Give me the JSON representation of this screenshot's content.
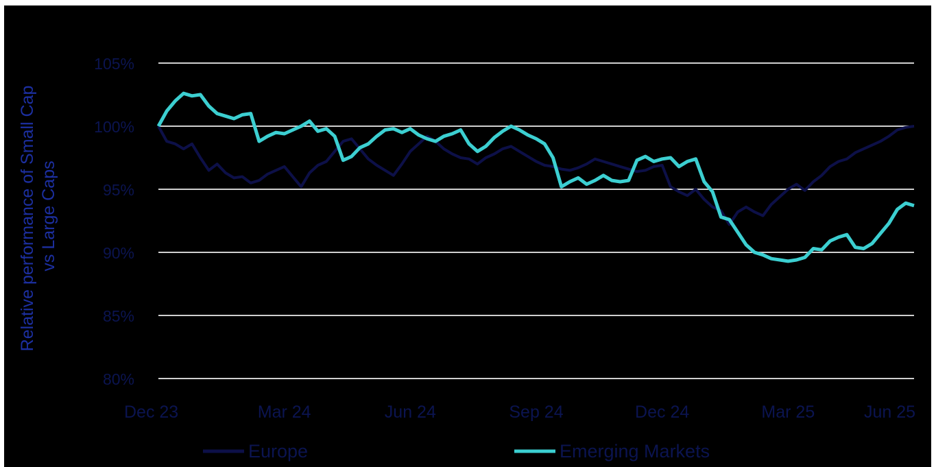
{
  "chart_data": {
    "type": "line",
    "ylabel_lines": [
      "Relative performance of Small Cap",
      "vs Large Caps"
    ],
    "xlabel": "",
    "y_ticks": [
      "80%",
      "85%",
      "90%",
      "95%",
      "100%",
      "105%"
    ],
    "y_tick_values": [
      80,
      85,
      90,
      95,
      100,
      105
    ],
    "ylim": [
      80,
      105
    ],
    "x_ticks": [
      "Dec 23",
      "Mar 24",
      "Jun 24",
      "Sep 24",
      "Dec 24",
      "Mar 25",
      "Jun 25"
    ],
    "x_tick_values": [
      0,
      3,
      6,
      9,
      12,
      15,
      18
    ],
    "xlim": [
      0,
      18
    ],
    "grid": "horizontal",
    "legend_position": "bottom",
    "series": [
      {
        "name": "Europe",
        "color": "#0d1048",
        "x": [
          0,
          0.2,
          0.4,
          0.6,
          0.8,
          1.0,
          1.2,
          1.4,
          1.6,
          1.8,
          2.0,
          2.2,
          2.4,
          2.6,
          2.8,
          3.0,
          3.2,
          3.4,
          3.6,
          3.8,
          4.0,
          4.2,
          4.4,
          4.6,
          4.8,
          5.0,
          5.2,
          5.4,
          5.6,
          5.8,
          6.0,
          6.2,
          6.4,
          6.6,
          6.8,
          7.0,
          7.2,
          7.4,
          7.6,
          7.8,
          8.0,
          8.2,
          8.4,
          8.6,
          8.8,
          9.0,
          9.2,
          9.4,
          9.6,
          9.8,
          10.0,
          10.2,
          10.4,
          10.6,
          10.8,
          11.0,
          11.2,
          11.4,
          11.6,
          11.8,
          12.0,
          12.2,
          12.4,
          12.6,
          12.8,
          13.0,
          13.2,
          13.4,
          13.6,
          13.8,
          14.0,
          14.2,
          14.4,
          14.6,
          14.8,
          15.0,
          15.2,
          15.4,
          15.6,
          15.8,
          16.0,
          16.2,
          16.4,
          16.6,
          16.8,
          17.0,
          17.2,
          17.4,
          17.6,
          17.8,
          18.0
        ],
        "values": [
          100.0,
          98.8,
          98.6,
          98.2,
          98.6,
          97.5,
          96.5,
          97.0,
          96.3,
          95.9,
          96.0,
          95.5,
          95.7,
          96.2,
          96.5,
          96.8,
          96.0,
          95.2,
          96.3,
          96.9,
          97.2,
          98.0,
          98.8,
          99.0,
          98.2,
          97.4,
          96.9,
          96.5,
          96.1,
          97.0,
          98.0,
          98.6,
          99.2,
          98.8,
          98.2,
          97.8,
          97.5,
          97.4,
          97.0,
          97.5,
          97.8,
          98.2,
          98.4,
          98.0,
          97.6,
          97.2,
          96.9,
          96.8,
          96.6,
          96.5,
          96.7,
          97.0,
          97.4,
          97.2,
          97.0,
          96.8,
          96.6,
          96.4,
          96.5,
          96.8,
          96.9,
          95.2,
          94.8,
          94.5,
          95.0,
          94.2,
          93.6,
          93.3,
          92.2,
          93.2,
          93.6,
          93.2,
          92.9,
          93.8,
          94.4,
          95.0,
          95.4,
          94.9,
          95.6,
          96.1,
          96.8,
          97.2,
          97.4,
          97.9,
          98.2,
          98.5,
          98.8,
          99.2,
          99.7,
          99.9,
          100.0
        ]
      },
      {
        "name": "Emerging Markets",
        "color": "#3ccfd1",
        "x": [
          0,
          0.2,
          0.4,
          0.6,
          0.8,
          1.0,
          1.2,
          1.4,
          1.6,
          1.8,
          2.0,
          2.2,
          2.4,
          2.6,
          2.8,
          3.0,
          3.2,
          3.4,
          3.6,
          3.8,
          4.0,
          4.2,
          4.4,
          4.6,
          4.8,
          5.0,
          5.2,
          5.4,
          5.6,
          5.8,
          6.0,
          6.2,
          6.4,
          6.6,
          6.8,
          7.0,
          7.2,
          7.4,
          7.6,
          7.8,
          8.0,
          8.2,
          8.4,
          8.6,
          8.8,
          9.0,
          9.2,
          9.4,
          9.6,
          9.8,
          10.0,
          10.2,
          10.4,
          10.6,
          10.8,
          11.0,
          11.2,
          11.4,
          11.6,
          11.8,
          12.0,
          12.2,
          12.4,
          12.6,
          12.8,
          13.0,
          13.2,
          13.4,
          13.6,
          13.8,
          14.0,
          14.2,
          14.4,
          14.6,
          14.8,
          15.0,
          15.2,
          15.4,
          15.6,
          15.8,
          16.0,
          16.2,
          16.4,
          16.6,
          16.8,
          17.0,
          17.2,
          17.4,
          17.6,
          17.8,
          18.0
        ],
        "values": [
          100.0,
          101.2,
          102.0,
          102.6,
          102.4,
          102.5,
          101.6,
          101.0,
          100.8,
          100.6,
          100.9,
          101.0,
          98.8,
          99.2,
          99.5,
          99.4,
          99.7,
          100.0,
          100.4,
          99.6,
          99.8,
          99.2,
          97.3,
          97.6,
          98.3,
          98.6,
          99.2,
          99.7,
          99.8,
          99.5,
          99.8,
          99.3,
          99.0,
          98.8,
          99.2,
          99.4,
          99.7,
          98.6,
          98.0,
          98.4,
          99.1,
          99.6,
          100.0,
          99.7,
          99.3,
          99.0,
          98.6,
          97.5,
          95.2,
          95.6,
          95.9,
          95.4,
          95.7,
          96.1,
          95.7,
          95.6,
          95.7,
          97.3,
          97.6,
          97.2,
          97.4,
          97.5,
          96.8,
          97.2,
          97.4,
          95.6,
          94.8,
          92.8,
          92.6,
          91.6,
          90.6,
          90.0,
          89.8,
          89.5,
          89.4,
          89.3,
          89.4,
          89.6,
          90.3,
          90.2,
          90.9,
          91.2,
          91.4,
          90.4,
          90.3,
          90.7,
          91.5,
          92.3,
          93.4,
          93.9,
          93.7
        ]
      }
    ]
  }
}
